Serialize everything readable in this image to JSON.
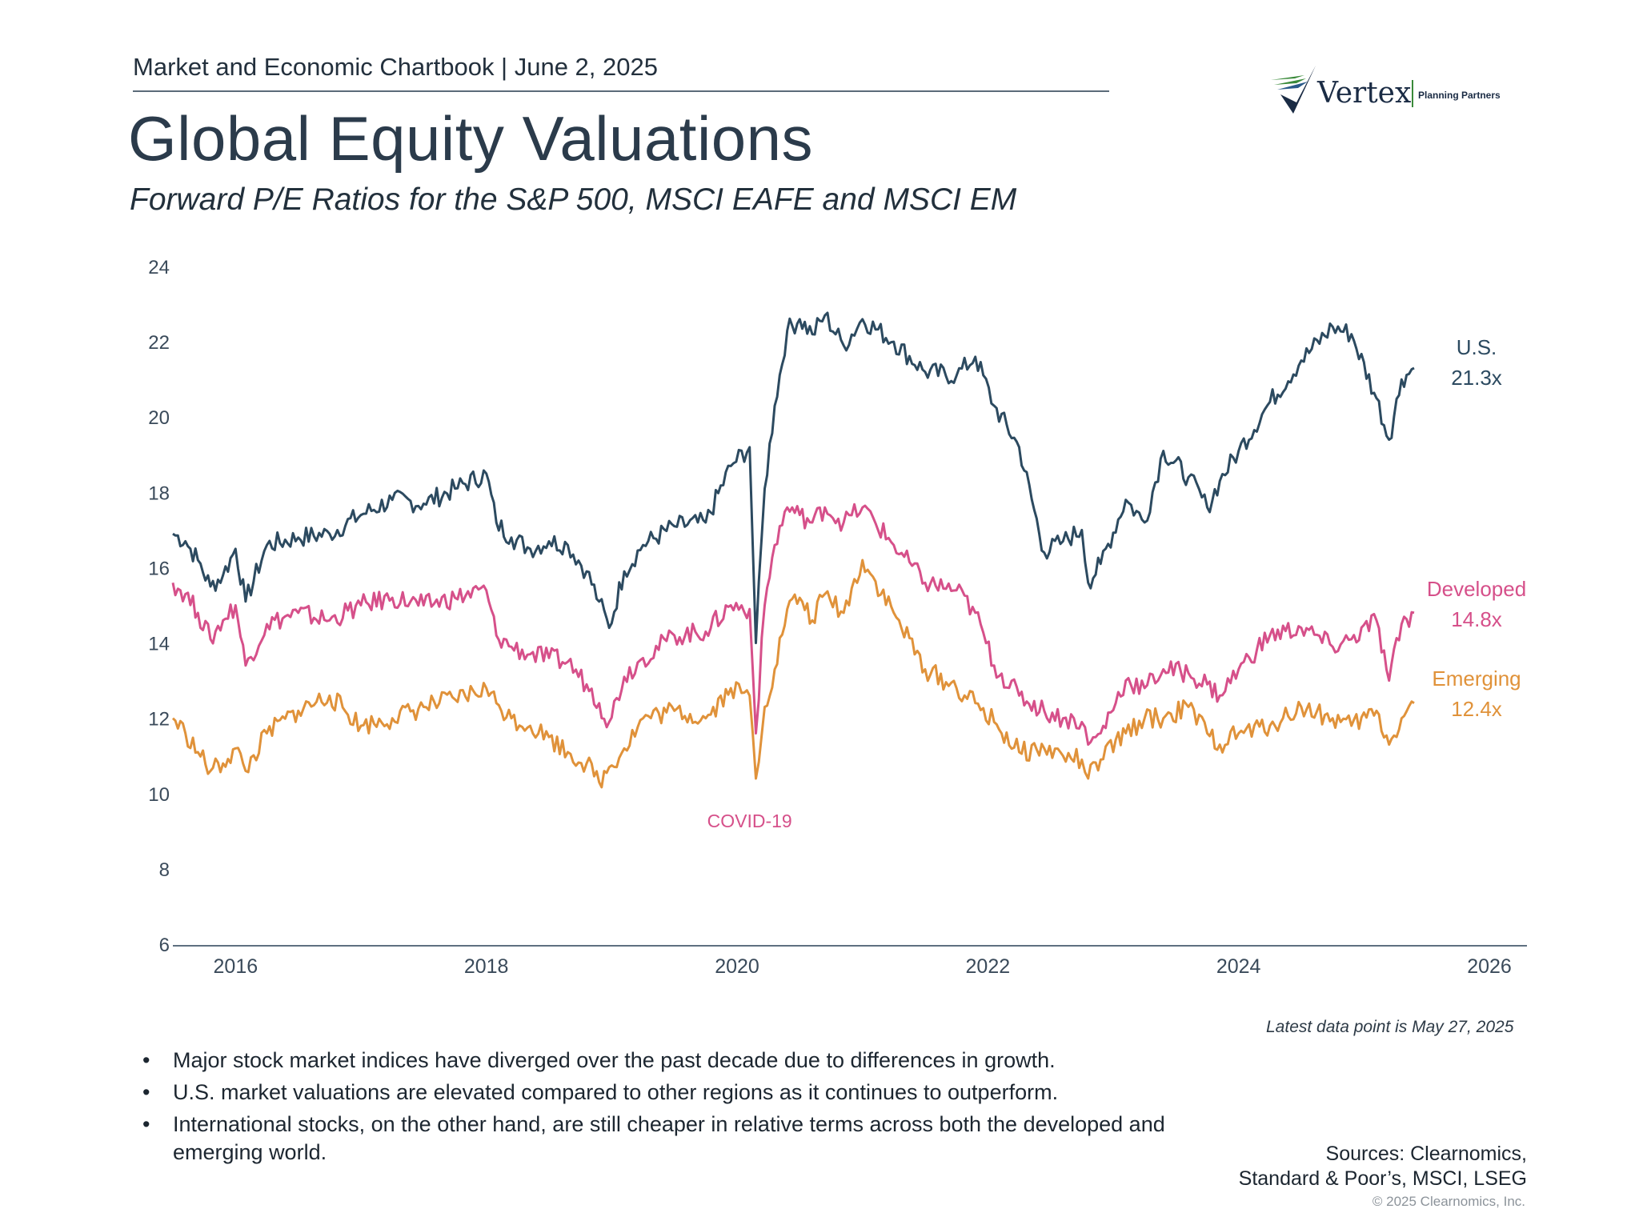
{
  "header": {
    "chartbook": "Market and Economic Chartbook | June 2, 2025",
    "title": "Global Equity Valuations",
    "subtitle": "Forward P/E Ratios for the S&P 500, MSCI EAFE and MSCI EM"
  },
  "logo": {
    "name": "Vertex",
    "tagline": "Planning Partners"
  },
  "colors": {
    "us": "#2c4a60",
    "developed": "#d6508a",
    "emerging": "#e0923a",
    "axis": "#5f7080",
    "tick_text": "#3a4a5a"
  },
  "chart_data": {
    "type": "line",
    "title": "Forward P/E Ratios for the S&P 500, MSCI EAFE and MSCI EM",
    "xlim": [
      2015.5,
      2026.3
    ],
    "ylim": [
      6,
      24
    ],
    "yticks": [
      6,
      8,
      10,
      12,
      14,
      16,
      18,
      20,
      22,
      24
    ],
    "xticks": [
      2016,
      2018,
      2020,
      2022,
      2024,
      2026
    ],
    "annotation": {
      "text": "COVID-19",
      "x": 2020.1,
      "y": 9.1
    },
    "series": [
      {
        "name": "U.S.",
        "end_label": "21.3x",
        "x": [
          2015.5,
          2015.6,
          2015.7,
          2015.8,
          2015.9,
          2016.0,
          2016.08,
          2016.25,
          2016.5,
          2016.75,
          2017.0,
          2017.25,
          2017.5,
          2017.75,
          2018.0,
          2018.08,
          2018.2,
          2018.35,
          2018.5,
          2018.65,
          2018.8,
          2018.9,
          2018.98,
          2019.1,
          2019.25,
          2019.5,
          2019.75,
          2019.95,
          2020.1,
          2020.15,
          2020.22,
          2020.3,
          2020.4,
          2020.5,
          2020.6,
          2020.7,
          2020.85,
          2021.0,
          2021.25,
          2021.5,
          2021.75,
          2021.9,
          2022.05,
          2022.25,
          2022.45,
          2022.6,
          2022.75,
          2022.8,
          2022.9,
          2023.1,
          2023.25,
          2023.4,
          2023.6,
          2023.75,
          2023.85,
          2024.0,
          2024.25,
          2024.5,
          2024.75,
          2024.9,
          2025.1,
          2025.2,
          2025.3,
          2025.4
        ],
        "values": [
          16.9,
          16.7,
          16.2,
          15.5,
          15.8,
          16.5,
          15.1,
          16.6,
          16.8,
          16.9,
          17.4,
          17.8,
          17.7,
          18.1,
          18.5,
          17.2,
          16.8,
          16.5,
          16.7,
          16.6,
          15.9,
          15.1,
          14.4,
          15.9,
          16.6,
          17.1,
          17.2,
          18.7,
          19.2,
          14.0,
          18.1,
          20.3,
          22.3,
          22.6,
          22.2,
          22.7,
          21.9,
          22.6,
          22.0,
          21.2,
          21.1,
          21.6,
          20.3,
          19.2,
          16.4,
          16.7,
          17.0,
          15.6,
          16.1,
          17.8,
          17.2,
          19.1,
          18.4,
          17.6,
          18.3,
          19.1,
          20.4,
          21.5,
          22.4,
          22.2,
          20.5,
          19.4,
          21.0,
          21.3
        ]
      },
      {
        "name": "Developed",
        "end_label": "14.8x",
        "x": [
          2015.5,
          2015.6,
          2015.7,
          2015.8,
          2015.9,
          2016.0,
          2016.08,
          2016.25,
          2016.5,
          2016.75,
          2017.0,
          2017.25,
          2017.5,
          2017.75,
          2018.0,
          2018.08,
          2018.2,
          2018.35,
          2018.5,
          2018.65,
          2018.8,
          2018.9,
          2018.98,
          2019.1,
          2019.25,
          2019.5,
          2019.75,
          2019.95,
          2020.1,
          2020.15,
          2020.22,
          2020.3,
          2020.4,
          2020.5,
          2020.6,
          2020.7,
          2020.85,
          2021.0,
          2021.25,
          2021.5,
          2021.75,
          2021.9,
          2022.05,
          2022.25,
          2022.45,
          2022.6,
          2022.75,
          2022.8,
          2022.9,
          2023.1,
          2023.25,
          2023.4,
          2023.6,
          2023.75,
          2023.85,
          2024.0,
          2024.25,
          2024.5,
          2024.75,
          2024.9,
          2025.1,
          2025.2,
          2025.3,
          2025.4
        ],
        "values": [
          15.6,
          15.3,
          14.8,
          14.1,
          14.6,
          15.0,
          13.4,
          14.5,
          14.8,
          14.6,
          15.0,
          15.2,
          15.0,
          15.2,
          15.4,
          14.2,
          13.9,
          13.7,
          13.6,
          13.5,
          12.9,
          12.4,
          11.9,
          13.1,
          13.6,
          14.2,
          14.3,
          15.0,
          14.9,
          11.6,
          15.0,
          16.6,
          17.6,
          17.4,
          17.2,
          17.6,
          17.2,
          17.6,
          16.6,
          15.6,
          15.4,
          14.8,
          13.4,
          12.6,
          12.2,
          12.0,
          11.9,
          11.3,
          11.6,
          13.0,
          12.8,
          13.3,
          13.2,
          12.9,
          12.6,
          13.3,
          14.2,
          14.4,
          13.9,
          14.1,
          14.6,
          13.0,
          14.5,
          14.8
        ]
      },
      {
        "name": "Emerging",
        "end_label": "12.4x",
        "x": [
          2015.5,
          2015.6,
          2015.7,
          2015.8,
          2015.9,
          2016.0,
          2016.08,
          2016.25,
          2016.5,
          2016.75,
          2017.0,
          2017.25,
          2017.5,
          2017.75,
          2018.0,
          2018.08,
          2018.2,
          2018.35,
          2018.5,
          2018.65,
          2018.8,
          2018.9,
          2018.98,
          2019.1,
          2019.25,
          2019.5,
          2019.75,
          2019.95,
          2020.1,
          2020.15,
          2020.22,
          2020.3,
          2020.4,
          2020.5,
          2020.6,
          2020.7,
          2020.85,
          2021.0,
          2021.25,
          2021.5,
          2021.75,
          2021.9,
          2022.05,
          2022.25,
          2022.45,
          2022.6,
          2022.75,
          2022.8,
          2022.9,
          2023.1,
          2023.25,
          2023.4,
          2023.6,
          2023.75,
          2023.85,
          2024.0,
          2024.25,
          2024.5,
          2024.75,
          2024.9,
          2025.1,
          2025.2,
          2025.3,
          2025.4
        ],
        "values": [
          12.0,
          11.6,
          11.1,
          10.6,
          10.8,
          11.2,
          10.6,
          11.6,
          12.2,
          12.6,
          11.8,
          12.0,
          12.3,
          12.5,
          12.8,
          12.4,
          12.0,
          11.8,
          11.5,
          11.1,
          10.8,
          10.3,
          10.7,
          11.2,
          12.0,
          12.2,
          12.0,
          12.8,
          12.6,
          10.4,
          12.3,
          13.3,
          14.9,
          15.2,
          14.6,
          15.3,
          14.8,
          16.2,
          14.8,
          13.3,
          12.8,
          12.4,
          11.9,
          11.1,
          11.2,
          11.0,
          10.9,
          10.4,
          10.9,
          11.6,
          12.0,
          12.0,
          12.3,
          11.6,
          11.3,
          11.6,
          11.8,
          12.3,
          12.0,
          11.8,
          12.2,
          11.3,
          12.0,
          12.4
        ]
      }
    ]
  },
  "footnote": "Latest data point is May 27, 2025",
  "bullets": [
    "Major stock market indices have diverged over the past decade due to differences in growth.",
    "U.S. market valuations are elevated compared to other regions as it continues to outperform.",
    "International stocks, on the other hand, are still cheaper in relative terms across both the developed and emerging world."
  ],
  "bullet_symbol": "•",
  "sources_line1": "Sources: Clearnomics,",
  "sources_line2": "Standard & Poor’s, MSCI, LSEG",
  "copyright": "© 2025 Clearnomics, Inc."
}
